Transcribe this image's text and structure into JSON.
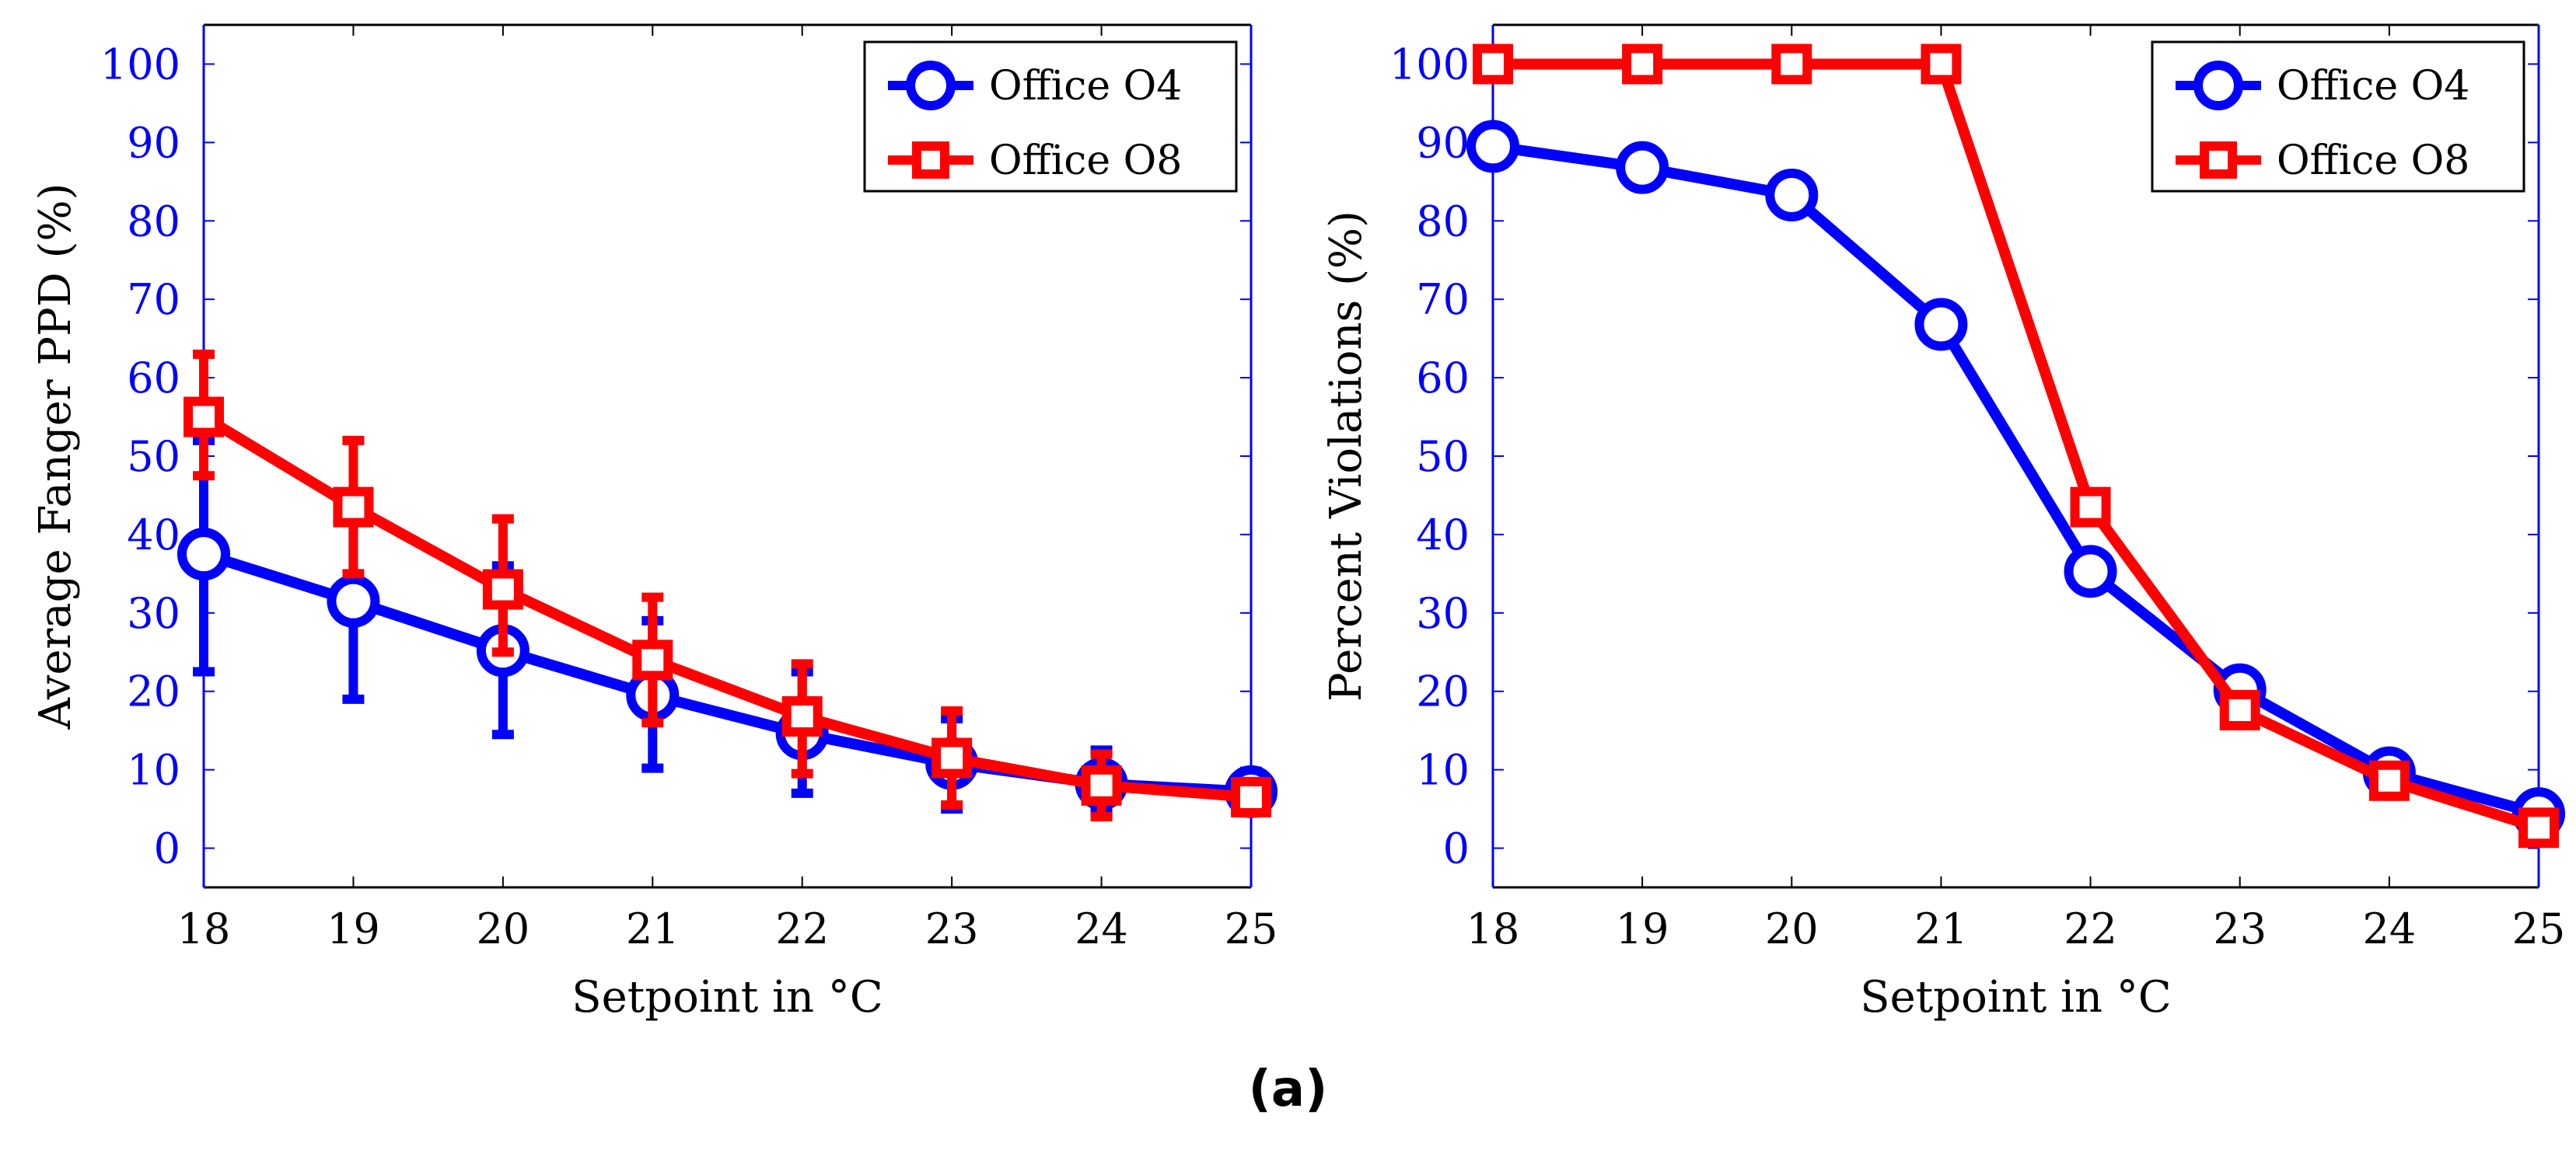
{
  "chart_data": [
    {
      "type": "line",
      "xlabel": "Setpoint in  °C",
      "ylabel": "Average Fanger PPD (%)",
      "xlim": [
        18,
        25
      ],
      "ylim": [
        -5,
        105
      ],
      "x": [
        18,
        19,
        20,
        21,
        22,
        23,
        24,
        25
      ],
      "xticks": [
        "18",
        "19",
        "20",
        "21",
        "22",
        "23",
        "24",
        "25"
      ],
      "yticks": [
        "0",
        "10",
        "20",
        "30",
        "40",
        "50",
        "60",
        "70",
        "80",
        "90",
        "100"
      ],
      "legend_position": "top-right",
      "series": [
        {
          "name": "Office O4",
          "color": "#0000ff",
          "marker": "circle",
          "values": [
            37.5,
            31.5,
            25.2,
            19.5,
            14.6,
            10.8,
            8.2,
            7.2
          ],
          "error_low": [
            22.5,
            19.0,
            14.5,
            10.2,
            7.0,
            5.0,
            4.5,
            4.5
          ],
          "error_high": [
            52.0,
            44.0,
            36.0,
            29.0,
            22.5,
            16.5,
            12.5,
            9.8
          ]
        },
        {
          "name": "Office O8",
          "color": "#ff0000",
          "marker": "square",
          "values": [
            55.0,
            43.5,
            33.0,
            24.0,
            16.8,
            11.5,
            8.0,
            6.5
          ],
          "error_low": [
            47.5,
            35.0,
            25.0,
            16.0,
            9.5,
            5.5,
            4.0,
            4.5
          ],
          "error_high": [
            63.0,
            52.0,
            42.0,
            32.0,
            23.5,
            17.5,
            12.0,
            8.5
          ]
        }
      ]
    },
    {
      "type": "line",
      "xlabel": "Setpoint in  °C",
      "ylabel": "Percent Violations (%)",
      "xlim": [
        18,
        25
      ],
      "ylim": [
        -5,
        105
      ],
      "x": [
        18,
        19,
        20,
        21,
        22,
        23,
        24,
        25
      ],
      "xticks": [
        "18",
        "19",
        "20",
        "21",
        "22",
        "23",
        "24",
        "25"
      ],
      "yticks": [
        "0",
        "10",
        "20",
        "30",
        "40",
        "50",
        "60",
        "70",
        "80",
        "90",
        "100"
      ],
      "legend_position": "top-right",
      "series": [
        {
          "name": "Office O4",
          "color": "#0000ff",
          "marker": "circle",
          "values": [
            89.5,
            86.8,
            83.3,
            66.8,
            35.3,
            20.2,
            9.6,
            4.4
          ]
        },
        {
          "name": "Office O8",
          "color": "#ff0000",
          "marker": "square",
          "values": [
            100,
            100,
            100,
            100,
            43.5,
            17.6,
            8.6,
            2.6
          ]
        }
      ]
    }
  ],
  "caption": "(a)"
}
